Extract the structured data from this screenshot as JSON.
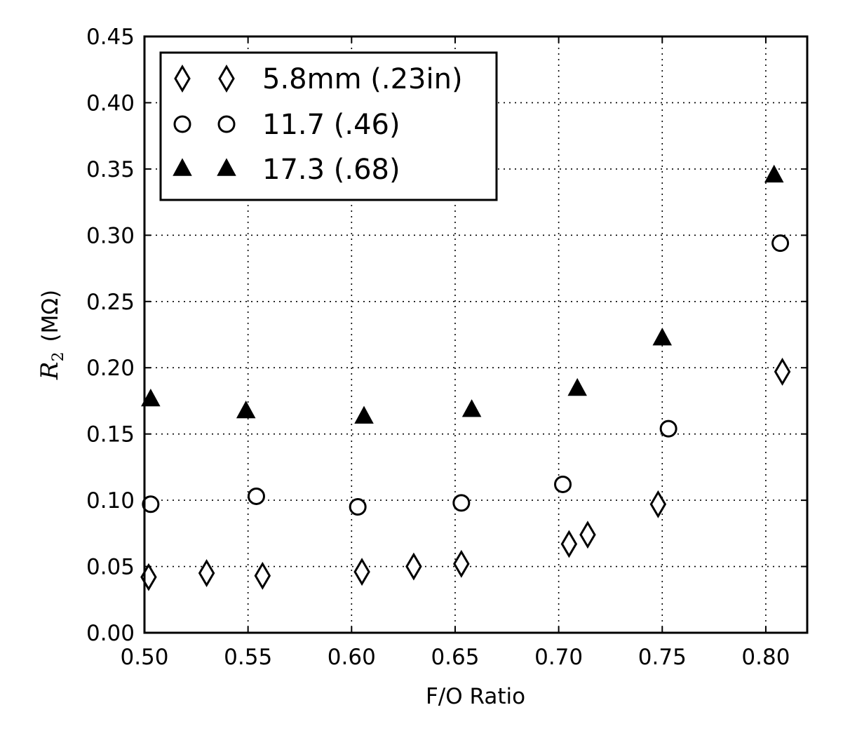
{
  "chart_data": {
    "type": "scatter",
    "title": "",
    "xlabel": "F/O Ratio",
    "ylabel": {
      "symbol": "R",
      "subscript": "2",
      "unit": "(MΩ)"
    },
    "xlim": [
      0.5,
      0.82
    ],
    "ylim": [
      0.0,
      0.45
    ],
    "xticks": [
      0.5,
      0.55,
      0.6,
      0.65,
      0.7,
      0.75,
      0.8
    ],
    "xtick_labels": [
      "0.50",
      "0.55",
      "0.60",
      "0.65",
      "0.70",
      "0.75",
      "0.80"
    ],
    "yticks": [
      0.0,
      0.05,
      0.1,
      0.15,
      0.2,
      0.25,
      0.3,
      0.35,
      0.4,
      0.45
    ],
    "ytick_labels": [
      "0.00",
      "0.05",
      "0.10",
      "0.15",
      "0.20",
      "0.25",
      "0.30",
      "0.35",
      "0.40",
      "0.45"
    ],
    "grid": true,
    "grid_style": "dotted",
    "legend_position": "top-left",
    "series": [
      {
        "name": "5.8mm (.23in)",
        "marker": "diamond-open",
        "color": "#000000",
        "points": [
          {
            "x": 0.502,
            "y": 0.042
          },
          {
            "x": 0.53,
            "y": 0.045
          },
          {
            "x": 0.557,
            "y": 0.043
          },
          {
            "x": 0.605,
            "y": 0.046
          },
          {
            "x": 0.63,
            "y": 0.05
          },
          {
            "x": 0.653,
            "y": 0.052
          },
          {
            "x": 0.705,
            "y": 0.067
          },
          {
            "x": 0.714,
            "y": 0.074
          },
          {
            "x": 0.748,
            "y": 0.097
          },
          {
            "x": 0.808,
            "y": 0.197
          }
        ]
      },
      {
        "name": "11.7 (.46)",
        "marker": "circle-open",
        "color": "#000000",
        "points": [
          {
            "x": 0.503,
            "y": 0.097
          },
          {
            "x": 0.554,
            "y": 0.103
          },
          {
            "x": 0.603,
            "y": 0.095
          },
          {
            "x": 0.653,
            "y": 0.098
          },
          {
            "x": 0.702,
            "y": 0.112
          },
          {
            "x": 0.753,
            "y": 0.154
          },
          {
            "x": 0.807,
            "y": 0.294
          }
        ]
      },
      {
        "name": "17.3 (.68)",
        "marker": "triangle-filled",
        "color": "#000000",
        "points": [
          {
            "x": 0.503,
            "y": 0.176
          },
          {
            "x": 0.549,
            "y": 0.167
          },
          {
            "x": 0.606,
            "y": 0.163
          },
          {
            "x": 0.658,
            "y": 0.168
          },
          {
            "x": 0.709,
            "y": 0.184
          },
          {
            "x": 0.75,
            "y": 0.222
          },
          {
            "x": 0.804,
            "y": 0.345
          }
        ]
      }
    ]
  }
}
